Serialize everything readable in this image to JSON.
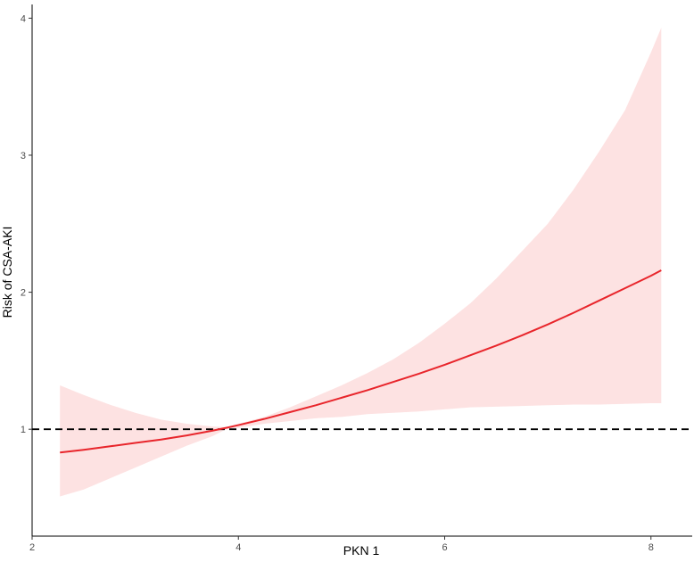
{
  "chart_data": {
    "type": "line",
    "title": "",
    "xlabel": "PKN 1",
    "ylabel": "Risk of CSA-AKI",
    "xlim": [
      2,
      8.4
    ],
    "ylim": [
      0.22,
      4.1
    ],
    "x_ticks": [
      2,
      4,
      6,
      8
    ],
    "y_ticks": [
      1,
      2,
      3,
      4
    ],
    "x_tick_labels": [
      "2",
      "4",
      "6",
      "8"
    ],
    "y_tick_labels": [
      "1",
      "2",
      "3",
      "4"
    ],
    "grid": false,
    "legend": "none",
    "reference_line": {
      "y": 1,
      "style": "dashed",
      "color": "#000000"
    },
    "series": [
      {
        "x": [
          2.27,
          2.5,
          2.75,
          3.0,
          3.25,
          3.5,
          3.75,
          3.88,
          4.0,
          4.25,
          4.5,
          4.75,
          5.0,
          5.25,
          5.5,
          5.75,
          6.0,
          6.25,
          6.5,
          6.75,
          7.0,
          7.25,
          7.5,
          7.75,
          8.0,
          8.1
        ],
        "y": [
          0.83,
          0.85,
          0.875,
          0.9,
          0.925,
          0.955,
          0.99,
          1.01,
          1.03,
          1.075,
          1.125,
          1.175,
          1.23,
          1.285,
          1.345,
          1.405,
          1.47,
          1.54,
          1.61,
          1.685,
          1.765,
          1.85,
          1.94,
          2.03,
          2.12,
          2.16
        ],
        "lower": [
          0.51,
          0.56,
          0.64,
          0.72,
          0.8,
          0.88,
          0.95,
          1.0,
          1.01,
          1.04,
          1.06,
          1.08,
          1.09,
          1.11,
          1.12,
          1.13,
          1.145,
          1.16,
          1.165,
          1.17,
          1.175,
          1.18,
          1.18,
          1.185,
          1.19,
          1.19
        ],
        "upper": [
          1.32,
          1.25,
          1.18,
          1.12,
          1.07,
          1.04,
          1.02,
          1.015,
          1.04,
          1.09,
          1.16,
          1.24,
          1.32,
          1.41,
          1.51,
          1.63,
          1.77,
          1.92,
          2.1,
          2.3,
          2.5,
          2.75,
          3.03,
          3.33,
          3.75,
          3.93
        ]
      }
    ]
  },
  "colors": {
    "line": "#e8252b",
    "band": "#fde2e2",
    "axis": "#000000",
    "tick_text": "#4d4d4d",
    "background": "#ffffff"
  }
}
